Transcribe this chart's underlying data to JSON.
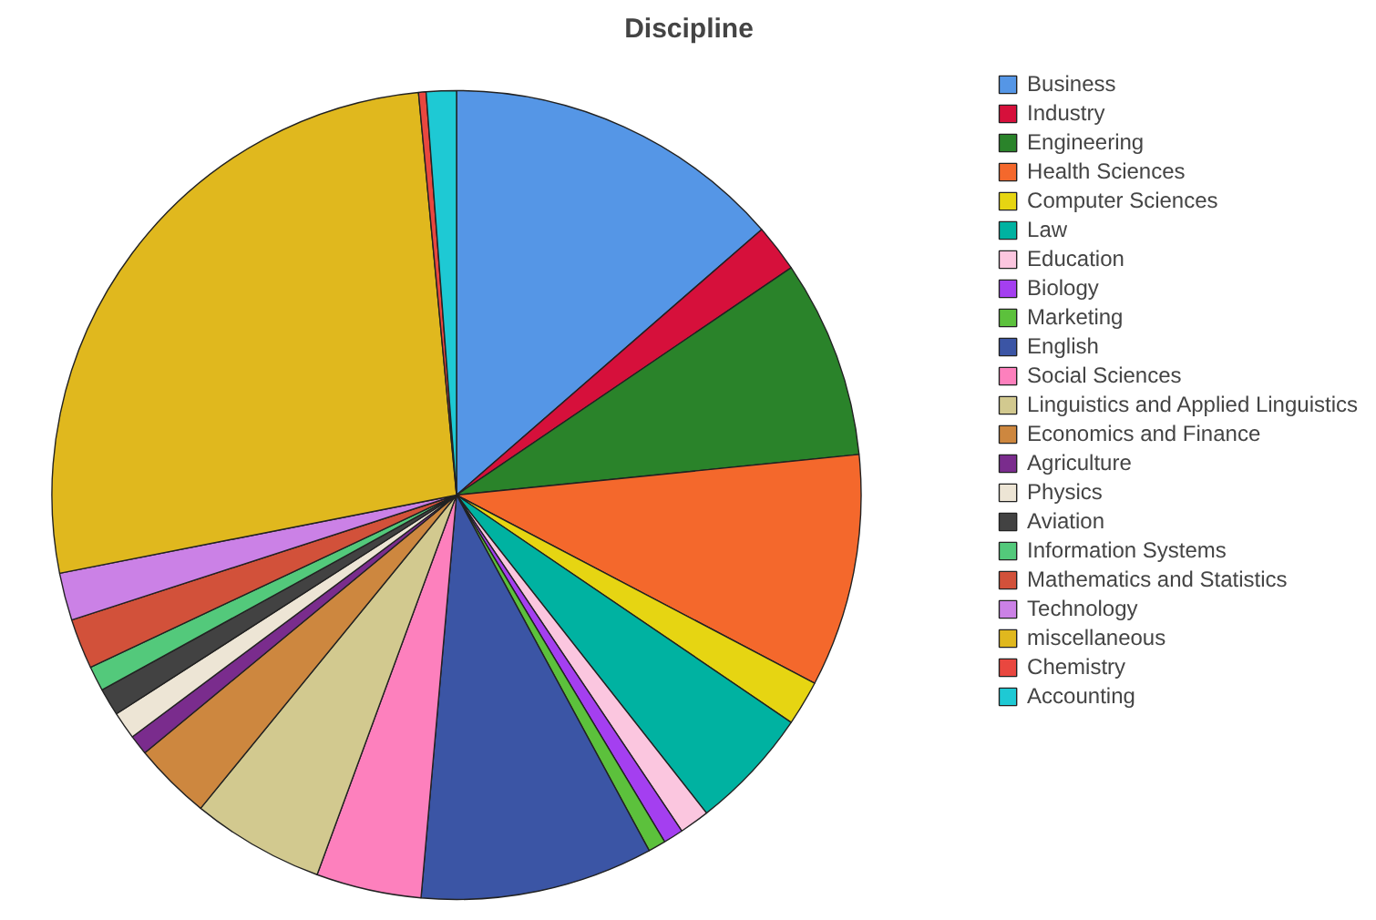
{
  "chart_data": {
    "type": "pie",
    "title": "Discipline",
    "legend": "right",
    "categories": [
      "Business",
      "Industry",
      "Engineering",
      "Health Sciences",
      "Computer Sciences",
      "Law",
      "Education",
      "Biology",
      "Marketing",
      "English",
      "Social Sciences",
      "Linguistics and Applied Linguistics",
      "Economics and Finance",
      "Agriculture",
      "Physics",
      "Aviation",
      "Information Systems",
      "Mathematics and Statistics",
      "Technology",
      "miscellaneous",
      "Chemistry",
      "Accounting"
    ],
    "values": [
      13.6,
      1.9,
      7.9,
      9.3,
      1.8,
      4.9,
      1.2,
      0.8,
      0.7,
      9.3,
      4.2,
      5.3,
      3.1,
      0.8,
      1.1,
      1.1,
      1.0,
      2.0,
      1.9,
      26.6,
      0.3,
      1.2
    ],
    "colors": [
      "#5596e6",
      "#d6103b",
      "#2a832a",
      "#f4682c",
      "#e6d512",
      "#00b2a1",
      "#fbc6df",
      "#a43ff0",
      "#5cc13c",
      "#3b55a5",
      "#fd80bd",
      "#d2c98f",
      "#cd873f",
      "#7a2c8d",
      "#ede5d5",
      "#424242",
      "#53c97b",
      "#d2513a",
      "#cb81e6",
      "#e0b81e",
      "#e9473f",
      "#1ec9d4"
    ]
  }
}
